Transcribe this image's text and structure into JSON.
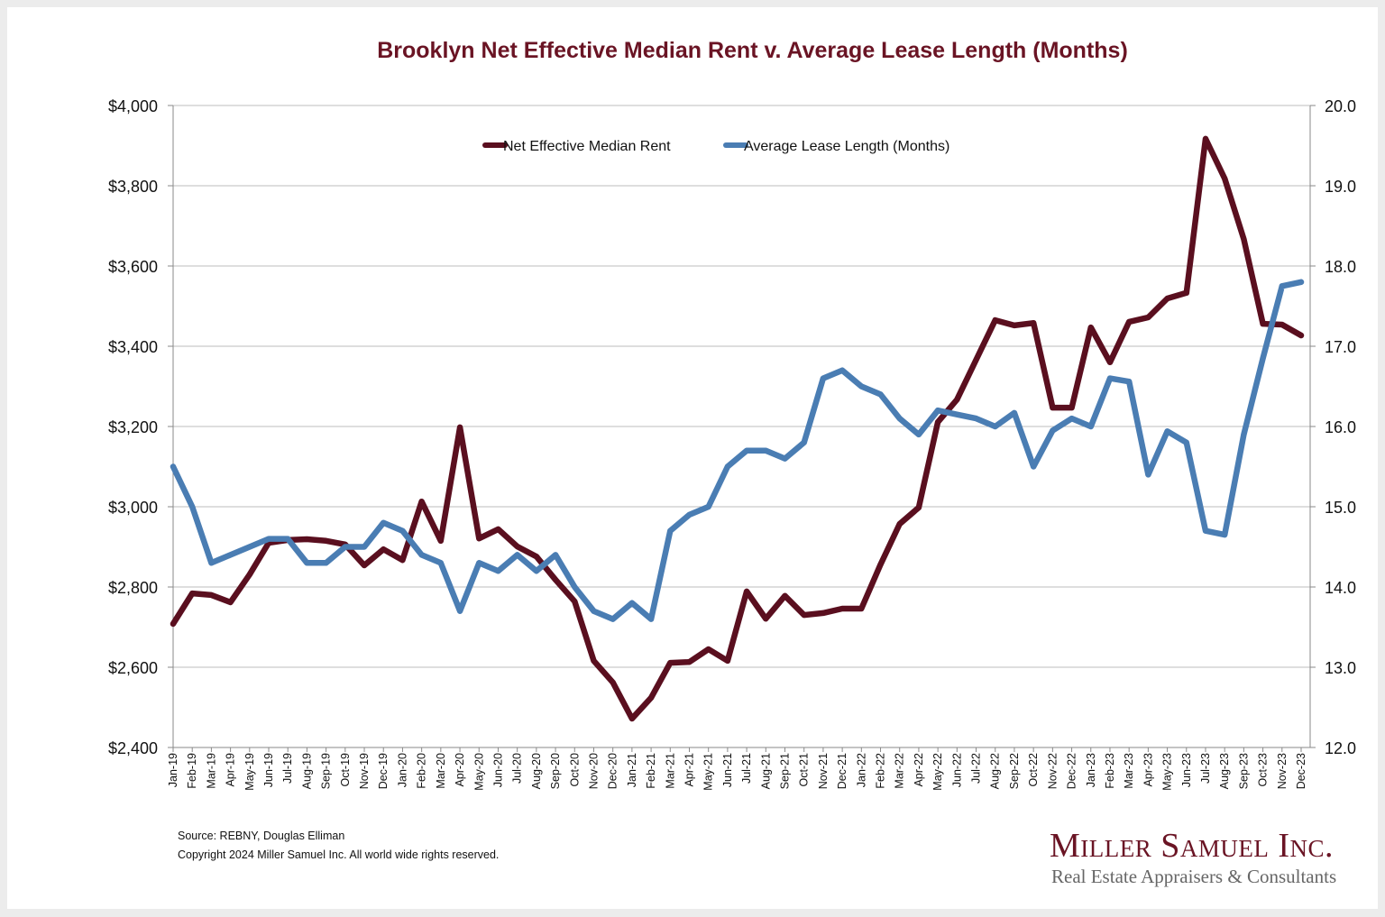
{
  "chart_data": {
    "type": "line",
    "title": "Brooklyn Net Effective Median Rent v. Average Lease Length (Months)",
    "xlabel": "",
    "ylabel": "",
    "y_left": {
      "range": [
        2400,
        4000
      ],
      "ticks": [
        "$2,400",
        "$2,600",
        "$2,800",
        "$3,000",
        "$3,200",
        "$3,400",
        "$3,600",
        "$3,800",
        "$4,000"
      ]
    },
    "y_right": {
      "range": [
        12.0,
        20.0
      ],
      "ticks": [
        "12.0",
        "13.0",
        "14.0",
        "15.0",
        "16.0",
        "17.0",
        "18.0",
        "19.0",
        "20.0"
      ]
    },
    "grid": true,
    "legend_position": "top-center",
    "categories": [
      "Jan-19",
      "Feb-19",
      "Mar-19",
      "Apr-19",
      "May-19",
      "Jun-19",
      "Jul-19",
      "Aug-19",
      "Sep-19",
      "Oct-19",
      "Nov-19",
      "Dec-19",
      "Jan-20",
      "Feb-20",
      "Mar-20",
      "Apr-20",
      "May-20",
      "Jun-20",
      "Jul-20",
      "Aug-20",
      "Sep-20",
      "Oct-20",
      "Nov-20",
      "Dec-20",
      "Jan-21",
      "Feb-21",
      "Mar-21",
      "Apr-21",
      "May-21",
      "Jun-21",
      "Jul-21",
      "Aug-21",
      "Sep-21",
      "Oct-21",
      "Nov-21",
      "Dec-21",
      "Jan-22",
      "Feb-22",
      "Mar-22",
      "Apr-22",
      "May-22",
      "Jun-22",
      "Jul-22",
      "Aug-22",
      "Sep-22",
      "Oct-22",
      "Nov-22",
      "Dec-22",
      "Jan-23",
      "Feb-23",
      "Mar-23",
      "Apr-23",
      "May-23",
      "Jun-23",
      "Jul-23",
      "Aug-23",
      "Sep-23",
      "Oct-23",
      "Nov-23",
      "Dec-23"
    ],
    "series": [
      {
        "name": "Net Effective Median Rent",
        "axis": "left",
        "color": "#5a0f1f",
        "values": [
          2708,
          2784,
          2780,
          2762,
          2831,
          2910,
          2917,
          2919,
          2915,
          2906,
          2854,
          2894,
          2867,
          3013,
          2915,
          3198,
          2921,
          2944,
          2901,
          2876,
          2818,
          2764,
          2616,
          2562,
          2472,
          2524,
          2611,
          2613,
          2645,
          2616,
          2789,
          2721,
          2778,
          2730,
          2735,
          2746,
          2746,
          2856,
          2957,
          2998,
          3211,
          3267,
          3366,
          3465,
          3452,
          3458,
          3247,
          3247,
          3447,
          3360,
          3461,
          3472,
          3519,
          3533,
          3917,
          3818,
          3667,
          3456,
          3454,
          3427
        ]
      },
      {
        "name": "Average Lease Length (Months)",
        "axis": "right",
        "color": "#4a7db3",
        "values": [
          15.5,
          15.0,
          14.3,
          14.4,
          14.5,
          14.6,
          14.6,
          14.3,
          14.3,
          14.5,
          14.5,
          14.8,
          14.7,
          14.4,
          14.3,
          13.7,
          14.3,
          14.2,
          14.4,
          14.2,
          14.4,
          14.0,
          13.7,
          13.6,
          13.8,
          13.6,
          14.7,
          14.9,
          15.0,
          15.5,
          15.7,
          15.7,
          15.6,
          15.8,
          16.6,
          16.7,
          16.5,
          16.4,
          16.1,
          15.9,
          16.2,
          16.15,
          16.1,
          16.0,
          16.17,
          15.5,
          15.95,
          16.1,
          16.0,
          16.6,
          16.56,
          15.4,
          15.94,
          15.8,
          14.7,
          14.65,
          15.9,
          16.85,
          17.75,
          17.8
        ]
      }
    ]
  },
  "footer": {
    "source": "Source: REBNY, Douglas Elliman",
    "copyright": "Copyright 2024 Miller Samuel Inc.  All world wide rights reserved."
  },
  "logo": {
    "name": "Miller Samuel Inc.",
    "tagline": "Real Estate Appraisers & Consultants"
  }
}
